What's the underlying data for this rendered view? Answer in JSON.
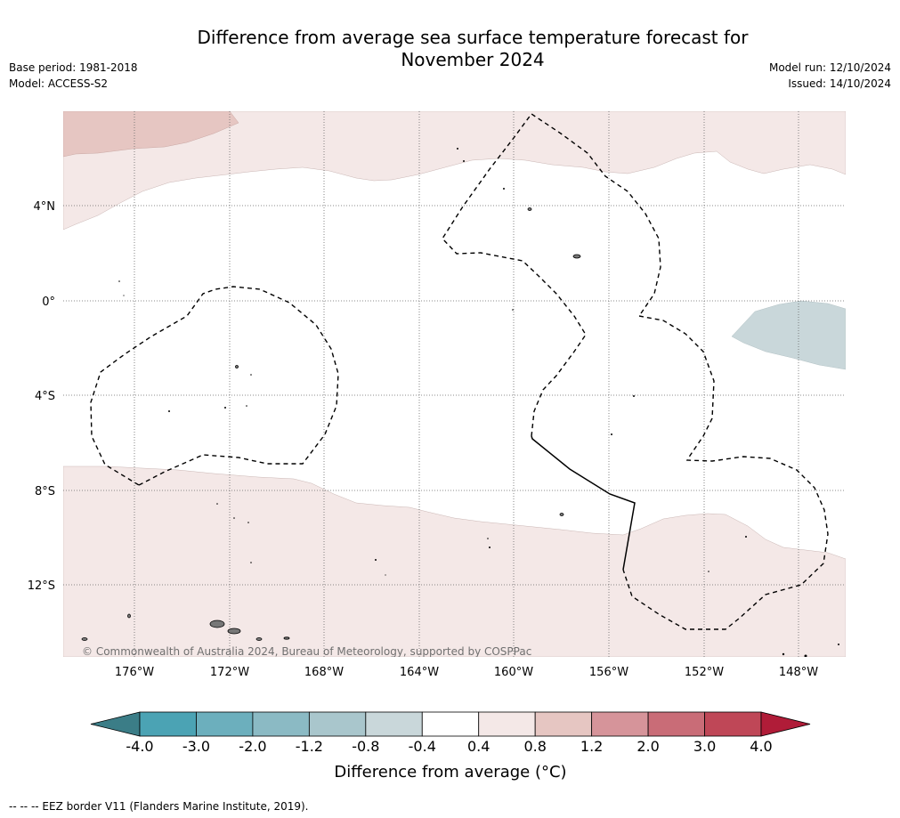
{
  "header": {
    "title_line1": "Difference from average sea surface temperature forecast for",
    "title_line2": "November 2024",
    "base_period": "Base period: 1981-2018",
    "model": "Model: ACCESS-S2",
    "model_run": "Model run: 12/10/2024",
    "issued": "Issued: 14/10/2024"
  },
  "map": {
    "latitude_labels": [
      "4°N",
      "0°",
      "4°S",
      "8°S",
      "12°S"
    ],
    "longitude_labels": [
      "176°W",
      "172°W",
      "168°W",
      "164°W",
      "160°W",
      "156°W",
      "152°W",
      "148°W"
    ],
    "copyright": "© Commonwealth of Australia 2024, Bureau of Meteorology, supported by COSPPac",
    "gridlines": true,
    "extent": {
      "lon": [
        -179,
        -146
      ],
      "lat": [
        7.9,
        -15
      ]
    },
    "anomaly_regions": [
      {
        "category": "0.4 to 0.8",
        "color": "#f4e8e7",
        "where": "northern band"
      },
      {
        "category": "0.8 to 1.2",
        "color": "#e6c6c2",
        "where": "northwest corner"
      },
      {
        "category": "-0.8 to -0.4",
        "color": "#c9d7da",
        "where": "east near equator"
      },
      {
        "category": "0.4 to 0.8",
        "color": "#f4e8e7",
        "where": "southern band"
      }
    ]
  },
  "colorbar": {
    "title": "Difference from average (°C)",
    "tick_labels": [
      "-4.0",
      "-3.0",
      "-2.0",
      "-1.2",
      "-0.8",
      "-0.4",
      "0.4",
      "0.8",
      "1.2",
      "2.0",
      "3.0",
      "4.0"
    ],
    "colors": [
      "#4ba3b4",
      "#6cafbd",
      "#8bbac4",
      "#a9c6cc",
      "#c9d7da",
      "#ffffff",
      "#f4e8e7",
      "#e6c6c2",
      "#d6949a",
      "#c96c77",
      "#bf4757"
    ],
    "extend_low_color": "#3b7d87",
    "extend_high_color": "#b01c38"
  },
  "footer": {
    "legend_text": "--  --  -- EEZ border V11 (Flanders Marine Institute, 2019)."
  }
}
